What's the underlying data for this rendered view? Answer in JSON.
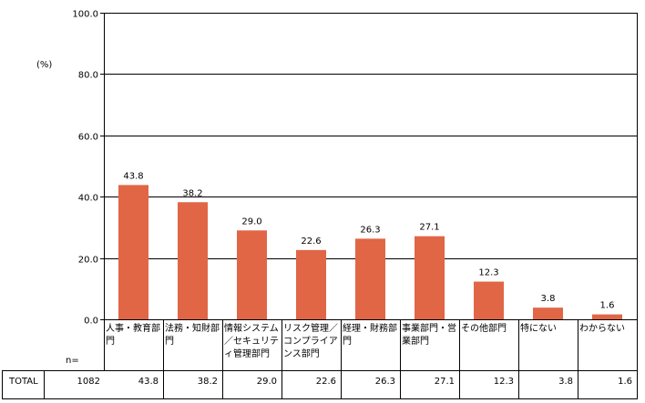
{
  "chart_data": {
    "type": "bar",
    "unit_label": "(%)",
    "y_ticks": [
      "0.0",
      "20.0",
      "40.0",
      "60.0",
      "80.0",
      "100.0"
    ],
    "ylim": [
      0,
      100
    ],
    "grid": true,
    "categories": [
      "人事・教育部門",
      "法務・知財部門",
      "情報システム／セキュリティ管理部門",
      "リスク管理／コンプライアンス部門",
      "経理・財務部門",
      "事業部門・営業部門",
      "その他部門",
      "特にない",
      "わからない"
    ],
    "values": [
      43.8,
      38.2,
      29.0,
      22.6,
      26.3,
      27.1,
      12.3,
      3.8,
      1.6
    ],
    "value_labels": [
      "43.8",
      "38.2",
      "29.0",
      "22.6",
      "26.3",
      "27.1",
      "12.3",
      "3.8",
      "1.6"
    ],
    "bar_color": "#E06646"
  },
  "table": {
    "n_label": "n=",
    "row_label": "TOTAL",
    "n_value": "1082",
    "cells": [
      "43.8",
      "38.2",
      "29.0",
      "22.6",
      "26.3",
      "27.1",
      "12.3",
      "3.8",
      "1.6"
    ]
  }
}
